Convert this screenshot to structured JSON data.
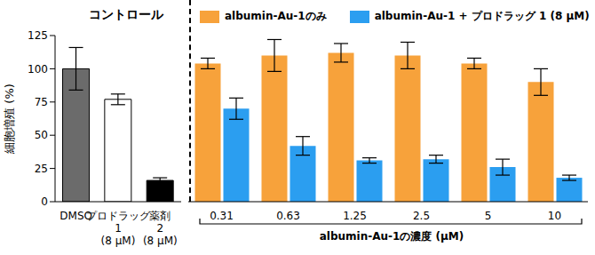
{
  "chart_data": {
    "type": "bar",
    "y_label": "細胞増殖 (%)",
    "x_label": "albumin-Au-1の濃度 (μM)",
    "annotations": [
      "コントロール"
    ],
    "categories": [
      "DMSO",
      "プロドラッグ 1 (8 μM)",
      "薬剤 2 (8 μM)",
      "0.31",
      "0.63",
      "1.25",
      "2.5",
      "5",
      "10"
    ],
    "series": [
      {
        "colors": [
          "#6b6b6b",
          "#ffffff",
          "#000000"
        ],
        "values": [
          100,
          77,
          16,
          null,
          null,
          null,
          null,
          null,
          null
        ],
        "errors": [
          16,
          4,
          2,
          null,
          null,
          null,
          null,
          null,
          null
        ]
      },
      {
        "name": "albumin-Au-1のみ",
        "color": "#f7a23b",
        "values": [
          null,
          null,
          null,
          104,
          110,
          112,
          110,
          104,
          90
        ],
        "errors": [
          null,
          null,
          null,
          4,
          12,
          7,
          10,
          4,
          10
        ]
      },
      {
        "name": "albumin-Au-1 + プロドラッグ 1 (8 μM)",
        "color": "#2b9ef0",
        "values": [
          null,
          null,
          null,
          70,
          42,
          31,
          32,
          26,
          18
        ],
        "errors": [
          null,
          null,
          null,
          8,
          7,
          2,
          3,
          6,
          2
        ]
      }
    ],
    "ylim": [
      0,
      125
    ],
    "yticks": [
      0,
      25,
      50,
      75,
      100,
      125
    ],
    "grid": false
  }
}
